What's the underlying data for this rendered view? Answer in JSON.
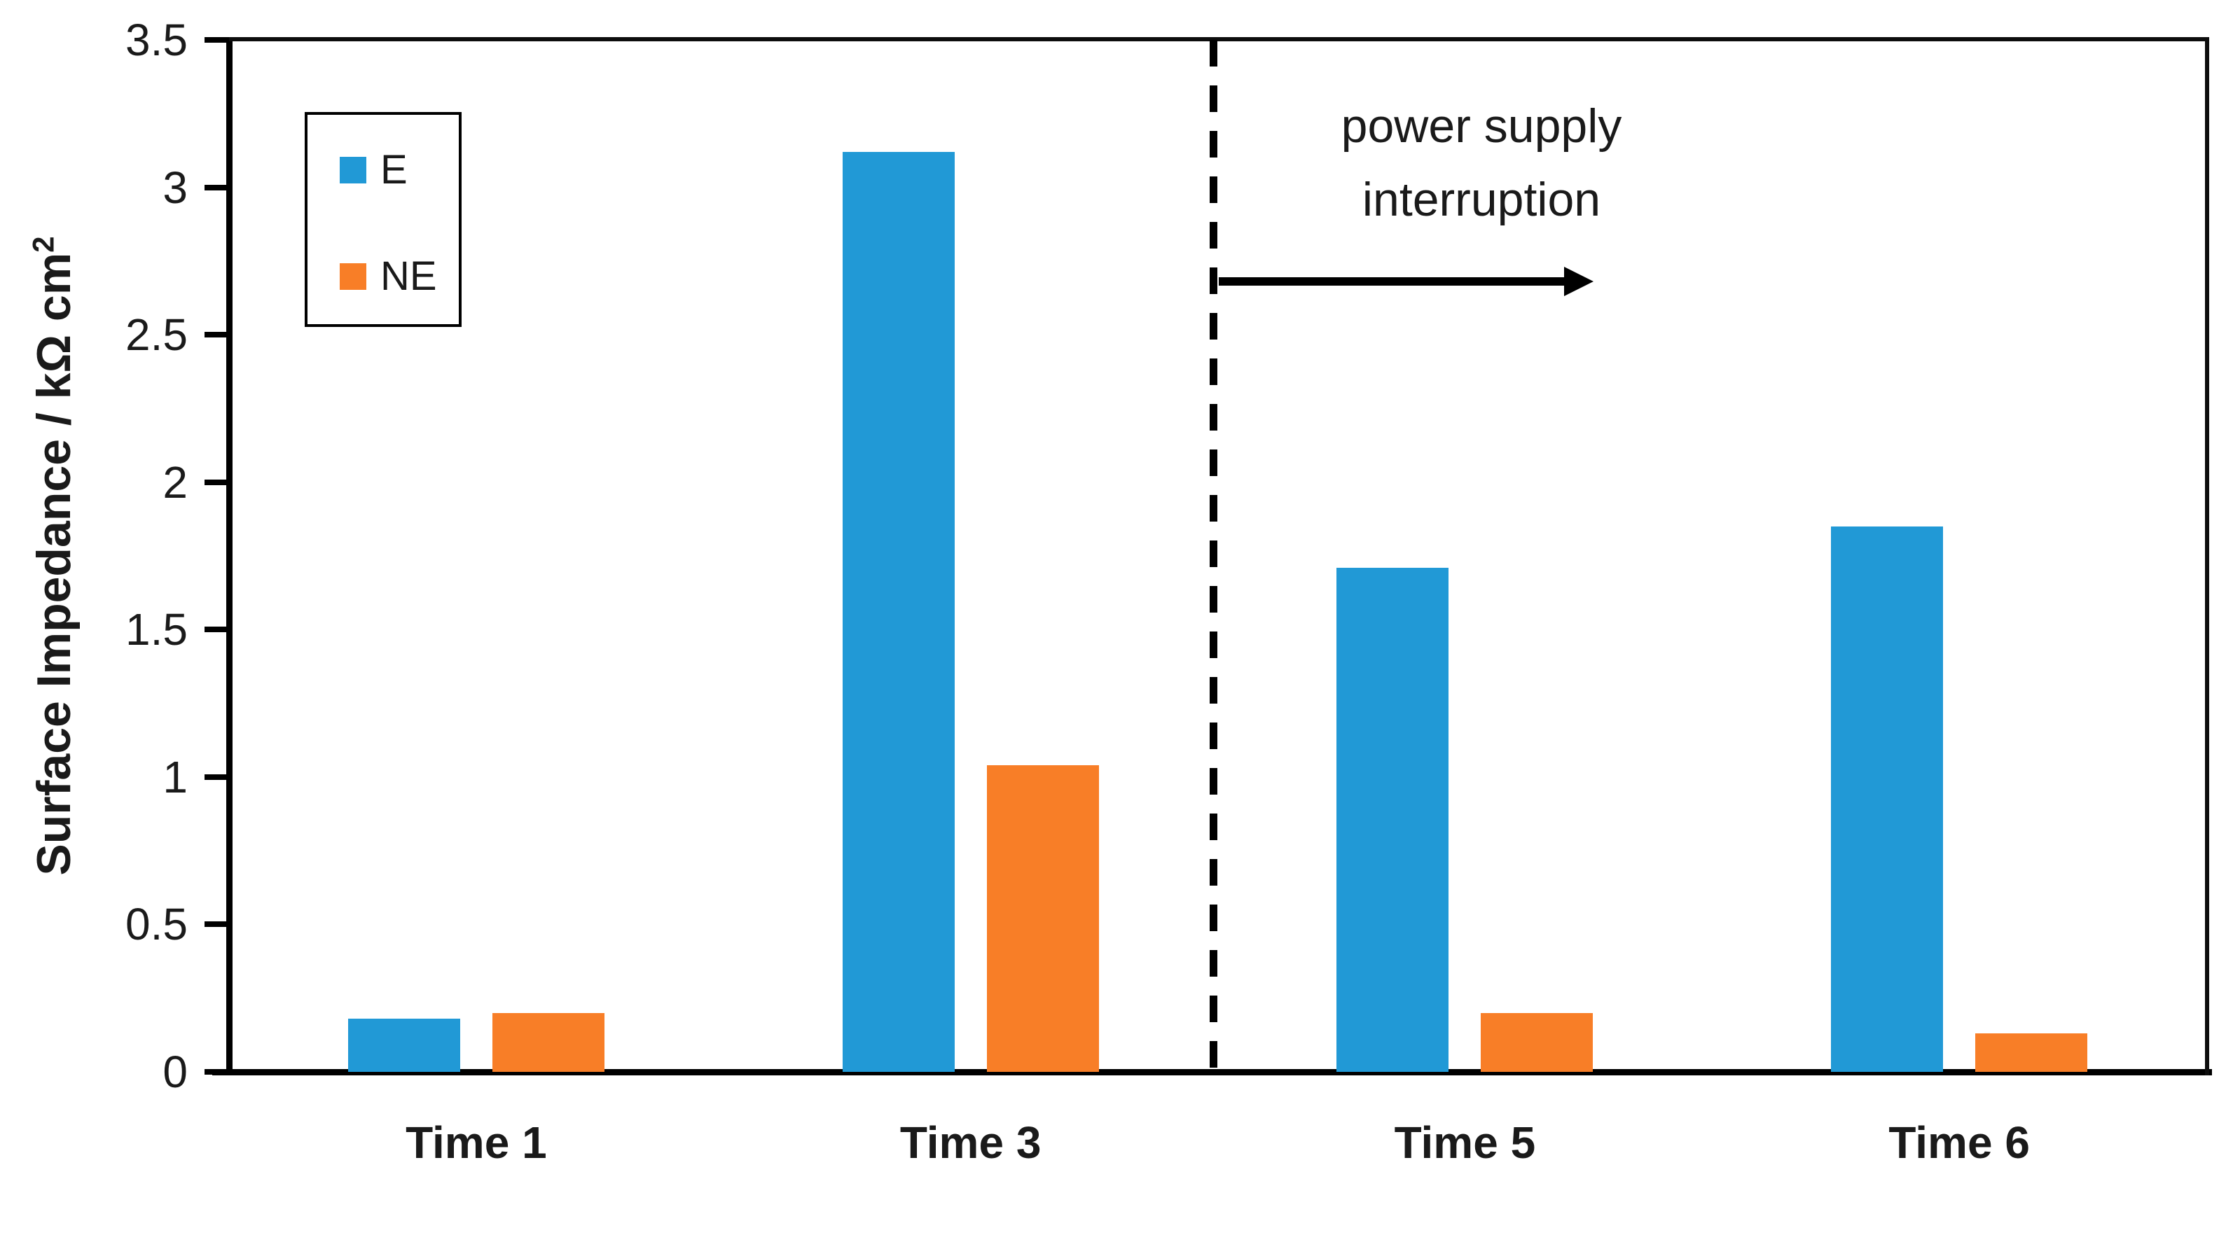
{
  "figure": {
    "background": "#ffffff",
    "text_color": "#1a1a1a",
    "axis_color": "#000000"
  },
  "chart_data": {
    "type": "bar",
    "title": "",
    "categories": [
      "Time 1",
      "Time 3",
      "Time 5",
      "Time 6"
    ],
    "series": [
      {
        "name": "E",
        "color": "#2199D6",
        "values": [
          0.18,
          3.12,
          1.71,
          1.85
        ]
      },
      {
        "name": "NE",
        "color": "#F87E27",
        "values": [
          0.2,
          1.04,
          0.2,
          0.13
        ]
      }
    ],
    "xlabel": "",
    "ylabel": "Surface Impedance / kΩ cm²",
    "ylabel_main": "Surface Impedance / kΩ cm",
    "ylabel_superscript": "2",
    "ylim": [
      0,
      3.5
    ],
    "yticks": [
      {
        "value": 0,
        "label": "0"
      },
      {
        "value": 0.5,
        "label": "0.5"
      },
      {
        "value": 1,
        "label": "1"
      },
      {
        "value": 1.5,
        "label": "1.5"
      },
      {
        "value": 2,
        "label": "2"
      },
      {
        "value": 2.5,
        "label": "2.5"
      },
      {
        "value": 3,
        "label": "3"
      },
      {
        "value": 3.5,
        "label": "3.5"
      }
    ],
    "grid": false,
    "legend": {
      "position": "top-left",
      "entries": [
        "E",
        "NE"
      ]
    },
    "annotation": {
      "line1": "power supply",
      "line2": "interruption",
      "arrow_direction": "right"
    },
    "divider": {
      "style": "dashed",
      "between_categories": [
        "Time 3",
        "Time 5"
      ]
    }
  }
}
